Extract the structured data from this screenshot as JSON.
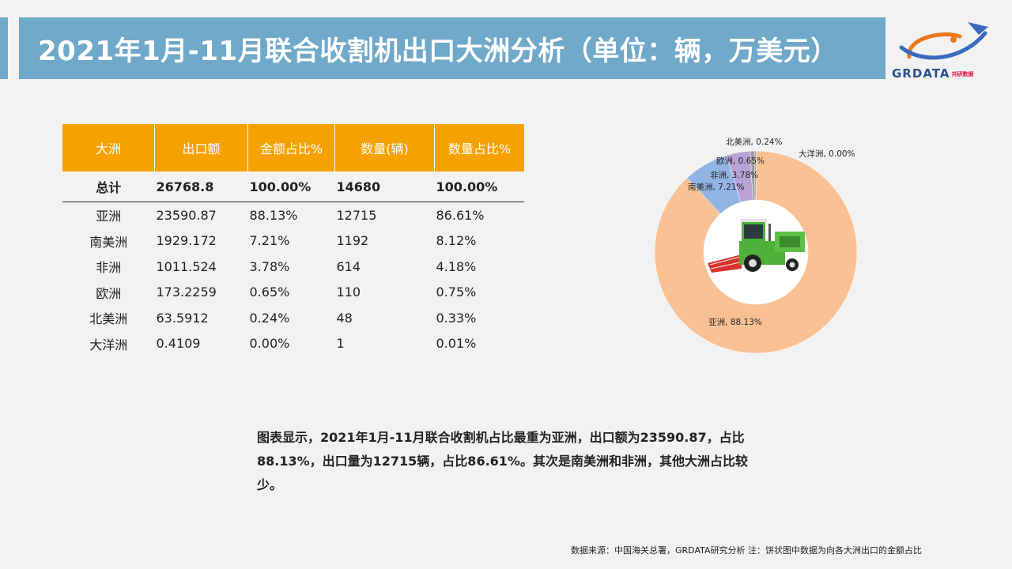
{
  "title": "2021年1月-11月联合收割机出口大洲分析（单位：辆，万美元）",
  "logo": {
    "text": "GRDATA",
    "subtext": "共研数据"
  },
  "table": {
    "headers": [
      "大洲",
      "出口额",
      "金额占比%",
      "数量(辆)",
      "数量占比%"
    ],
    "total": [
      "总计",
      "26768.8",
      "100.00%",
      "14680",
      "100.00%"
    ],
    "rows": [
      [
        "亚洲",
        "23590.87",
        "88.13%",
        "12715",
        "86.61%"
      ],
      [
        "南美洲",
        "1929.172",
        "7.21%",
        "1192",
        "8.12%"
      ],
      [
        "非洲",
        "1011.524",
        "3.78%",
        "614",
        "4.18%"
      ],
      [
        "欧洲",
        "173.2259",
        "0.65%",
        "110",
        "0.75%"
      ],
      [
        "北美洲",
        "63.5912",
        "0.24%",
        "48",
        "0.33%"
      ],
      [
        "大洋洲",
        "0.4109",
        "0.00%",
        "1",
        "0.01%"
      ]
    ]
  },
  "chart_data": {
    "type": "pie",
    "categories": [
      "亚洲",
      "南美洲",
      "非洲",
      "欧洲",
      "北美洲",
      "大洋洲"
    ],
    "values": [
      88.13,
      7.21,
      3.78,
      0.65,
      0.24,
      0.0
    ],
    "labels": [
      "亚洲, 88.13%",
      "南美洲, 7.21%",
      "非洲, 3.78%",
      "欧洲, 0.65%",
      "北美洲, 0.24%",
      "大洋洲, 0.00%"
    ],
    "colors": [
      "#f9c193",
      "#92b4e3",
      "#b9a2d6",
      "#9d9d9d",
      "#7b8fb8",
      "#5f6f9f"
    ],
    "donut": true,
    "center_image": "harvester"
  },
  "summary": "图表显示，2021年1月-11月联合收割机占比最重为亚洲，出口额为23590.87，占比88.13%，出口量为12715辆，占比86.61%。其次是南美洲和非洲，其他大洲占比较少。",
  "source": "数据来源：中国海关总署，GRDATA研究分析  注：饼状图中数据为向各大洲出口的金额占比"
}
